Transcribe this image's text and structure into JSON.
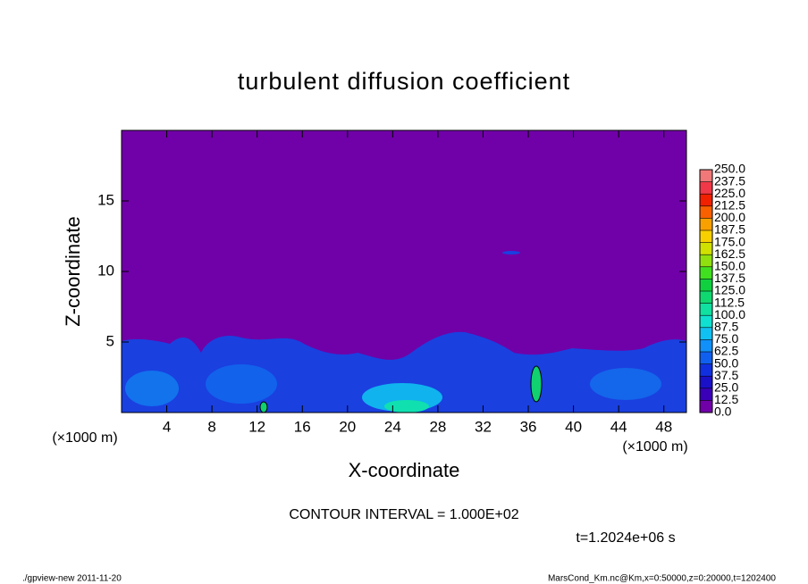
{
  "chart_data": {
    "type": "contour",
    "title": "turbulent diffusion coefficient",
    "x_label": "X-coordinate",
    "y_label": "Z-coordinate",
    "x_unit": "(×1000 m)",
    "y_unit": "(×1000 m)",
    "xlim": [
      0,
      50
    ],
    "xticks": [
      4,
      8,
      12,
      16,
      20,
      24,
      28,
      32,
      36,
      40,
      44,
      48
    ],
    "ylim": [
      0,
      20
    ],
    "yticks": [
      5,
      10,
      15
    ],
    "colorbar": {
      "levels": [
        {
          "value": 0,
          "label": "0.0"
        },
        12.5,
        {
          "value": 25,
          "label": "25.0"
        },
        37.5,
        {
          "value": 50,
          "label": "50.0"
        },
        62.5,
        {
          "value": 75,
          "label": "75.0"
        },
        87.5,
        {
          "value": 100,
          "label": "100.0"
        },
        112.5,
        {
          "value": 125,
          "label": "125.0"
        },
        137.5,
        {
          "value": 150,
          "label": "150.0"
        },
        162.5,
        {
          "value": 175,
          "label": "175.0"
        },
        187.5,
        {
          "value": 200,
          "label": "200.0"
        },
        212.5,
        {
          "value": 225,
          "label": "225.0"
        },
        237.5,
        {
          "value": 250,
          "label": "250.0"
        }
      ],
      "colors": [
        "#7000a8",
        "#3a00b8",
        "#1a10c8",
        "#1030e0",
        "#1060f0",
        "#1090f8",
        "#10c0f0",
        "#10e0d0",
        "#10e0a0",
        "#10d870",
        "#10d040",
        "#40e020",
        "#90e010",
        "#d0e000",
        "#f8d000",
        "#f8a000",
        "#f86000",
        "#f02000",
        "#f03848",
        "#f07878"
      ]
    },
    "contour_interval": "CONTOUR INTERVAL = 1.000E+02",
    "time_label": "t=1.2024e+06 s",
    "footer_left": "./gpview-new   2011-11-20",
    "footer_right": "MarsCond_Km.nc@Km,x=0:50000,z=0:20000,t=1202400"
  }
}
